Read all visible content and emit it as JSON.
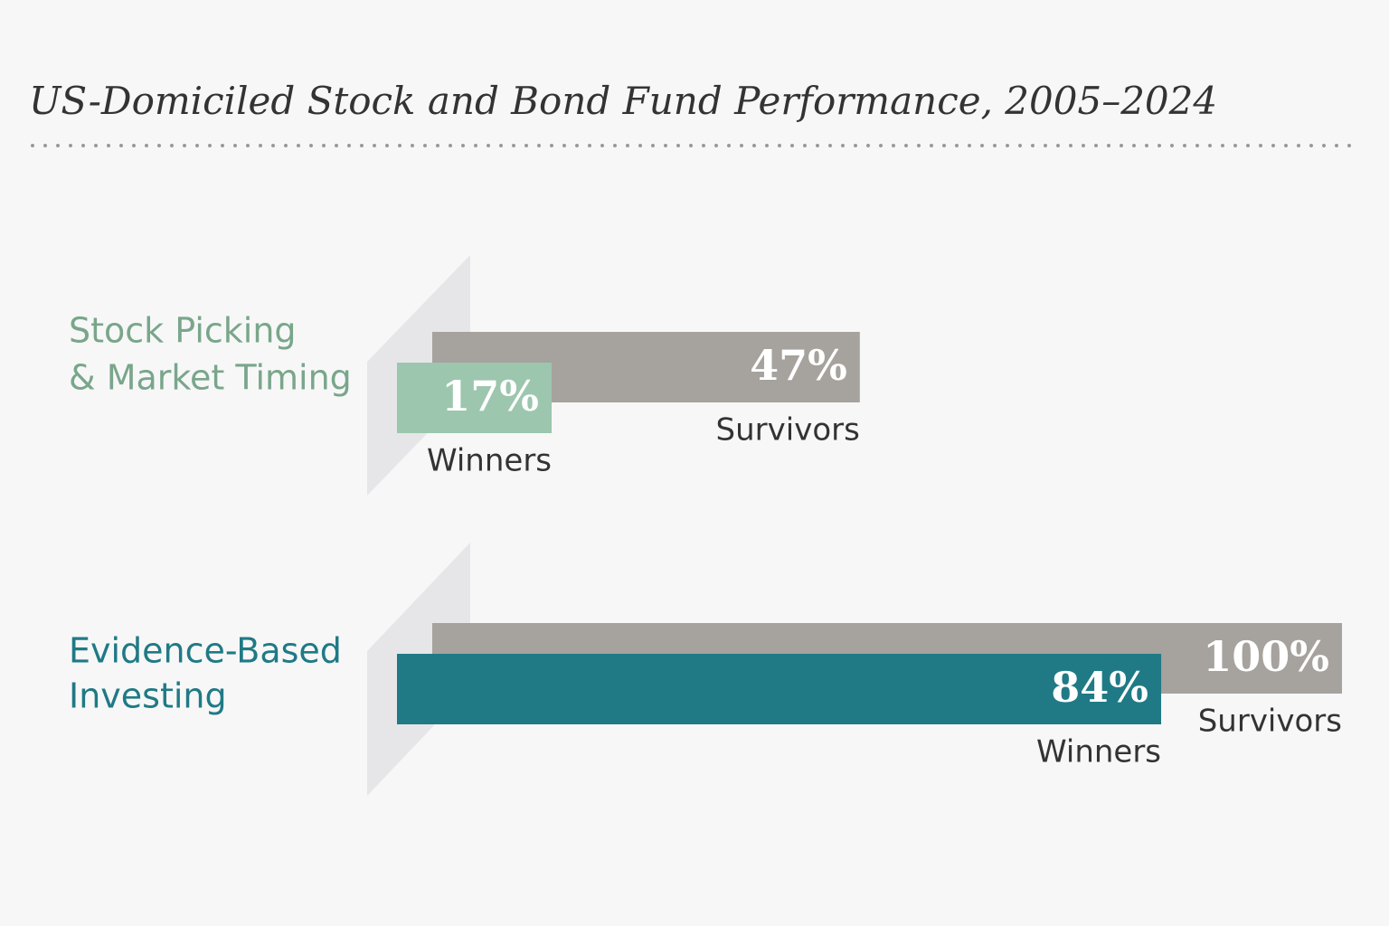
{
  "chart_data": {
    "type": "bar",
    "orientation": "horizontal",
    "title": "US-Domiciled Stock and Bond Fund Performance, 2005–2024",
    "categories": [
      [
        "Stock Picking",
        "& Market Timing"
      ],
      [
        "Evidence-Based",
        "Investing"
      ]
    ],
    "category_colors": [
      "#79a68a",
      "#1f7a85"
    ],
    "series": [
      {
        "name": "Survivors",
        "color": "#a6a29e",
        "values": [
          47,
          100
        ],
        "value_labels": [
          "47%",
          "100%"
        ]
      },
      {
        "name": "Winners",
        "colors": [
          "#9cc6ae",
          "#1f7a86"
        ],
        "values": [
          17,
          84
        ],
        "value_labels": [
          "17%",
          "84%"
        ]
      }
    ]
  }
}
